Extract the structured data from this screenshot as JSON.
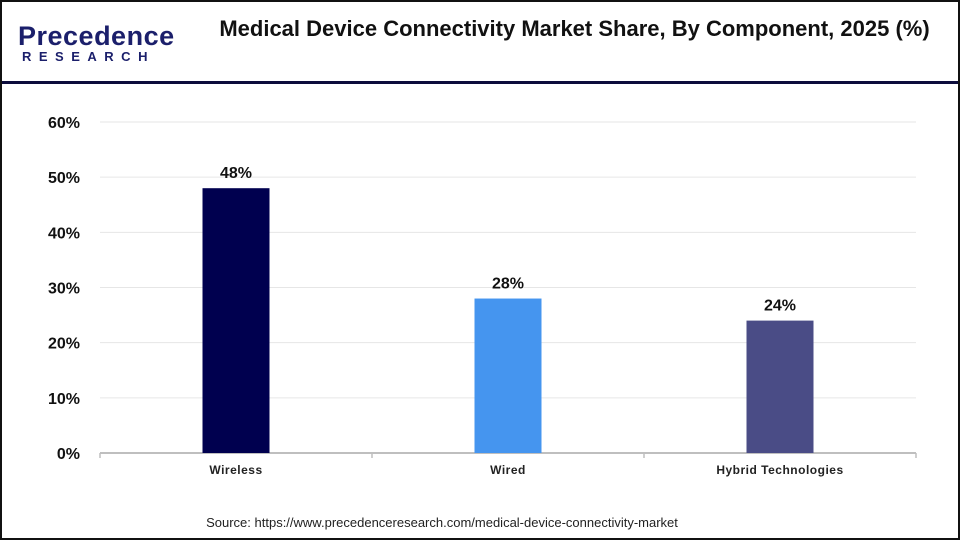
{
  "logo": {
    "line1": "Precedence",
    "line2": "RESEARCH"
  },
  "chart_data": {
    "type": "bar",
    "title": "Medical Device Connectivity Market Share, By Component, 2025 (%)",
    "categories": [
      "Wireless",
      "Wired",
      "Hybrid Technologies"
    ],
    "values": [
      48,
      28,
      24
    ],
    "data_labels": [
      "48%",
      "28%",
      "24%"
    ],
    "colors": [
      "#00004f",
      "#4595ef",
      "#4a4c86"
    ],
    "ylim": [
      0,
      60
    ],
    "yticks": [
      0,
      10,
      20,
      30,
      40,
      50,
      60
    ],
    "ytick_labels": [
      "0%",
      "10%",
      "20%",
      "30%",
      "40%",
      "50%",
      "60%"
    ],
    "grid": true,
    "xlabel": "",
    "ylabel": ""
  },
  "source": "Source: https://www.precedenceresearch.com/medical-device-connectivity-market"
}
